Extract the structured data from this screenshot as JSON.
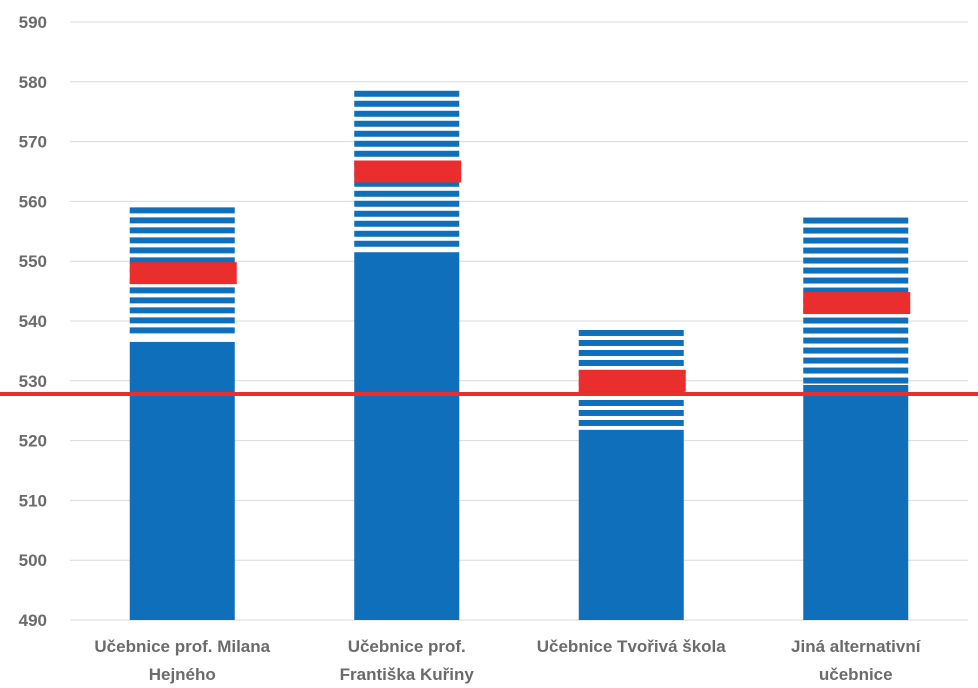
{
  "chart_data": {
    "type": "bar",
    "title": "",
    "xlabel": "",
    "ylabel": "",
    "ylim": [
      490,
      590
    ],
    "yticks": [
      490,
      500,
      510,
      520,
      530,
      540,
      550,
      560,
      570,
      580,
      590
    ],
    "grid": true,
    "legend": "none",
    "categories": [
      [
        "Učebnice prof. Milana",
        "Hejného"
      ],
      [
        "Učebnice prof.",
        "Františka Kuřiny"
      ],
      [
        "Učebnice Tvořivá škola"
      ],
      [
        "Jiná alternativní",
        "učebnice"
      ]
    ],
    "series": [
      {
        "values": [
          536.5,
          551.5,
          521.8,
          529.3
        ]
      },
      {
        "values": [
          559,
          578.5,
          538.5,
          557.3
        ]
      },
      {
        "values": [
          548,
          565,
          530,
          543
        ]
      }
    ],
    "reference_line": {
      "value": 527.8
    },
    "colors": {
      "bar": "#0f6fbb",
      "stripe_gap": "#ffffff",
      "marker": "#ea2d2d",
      "reference_line": "#ea2d2d",
      "grid": "#d9d9d9",
      "text": "#6b6b6b"
    }
  }
}
